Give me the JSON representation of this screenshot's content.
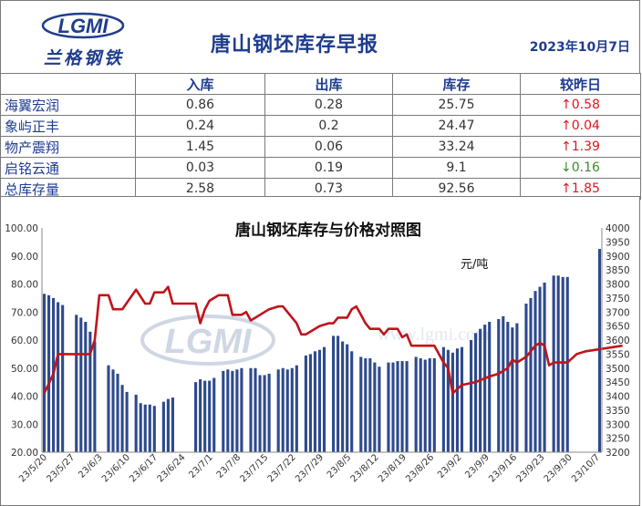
{
  "header": {
    "logo_text": "兰格钢铁",
    "logo_mark": "LGMI",
    "title": "唐山钢坯库存早报",
    "date": "2023年10月7日"
  },
  "table": {
    "columns": [
      "",
      "入库",
      "出库",
      "库存",
      "较昨日"
    ],
    "rows": [
      {
        "name": "海翼宏润",
        "in": "0.86",
        "out": "0.28",
        "stock": "25.75",
        "change": "↑0.58",
        "dir": "up"
      },
      {
        "name": "象屿正丰",
        "in": "0.24",
        "out": "0.2",
        "stock": "24.47",
        "change": "↑0.04",
        "dir": "up"
      },
      {
        "name": "物产震翔",
        "in": "1.45",
        "out": "0.06",
        "stock": "33.24",
        "change": "↑1.39",
        "dir": "up"
      },
      {
        "name": "启铭云通",
        "in": "0.03",
        "out": "0.19",
        "stock": "9.1",
        "change": "↓0.16",
        "dir": "down"
      },
      {
        "name": "总库存量",
        "in": "2.58",
        "out": "0.73",
        "stock": "92.56",
        "change": "↑1.85",
        "dir": "up"
      }
    ]
  },
  "colors": {
    "accent": "#1f3d8f",
    "bar": "#2e4a8c",
    "line": "#c0141b",
    "up": "#e0141e",
    "down": "#3a8c2a"
  },
  "chart_data": {
    "type": "bar",
    "title": "唐山钢坯库存与价格对照图",
    "price_unit_label": "元/吨",
    "watermark": "LGMI",
    "watermark_url": "www.lgmi.com",
    "y_left": {
      "min": 20,
      "max": 100,
      "ticks": [
        "20.00",
        "30.00",
        "40.00",
        "50.00",
        "60.00",
        "70.00",
        "80.00",
        "90.00",
        "100.00"
      ]
    },
    "y_right": {
      "min": 3200,
      "max": 4000,
      "ticks": [
        "3200",
        "3250",
        "3300",
        "3350",
        "3400",
        "3450",
        "3500",
        "3550",
        "3600",
        "3650",
        "3700",
        "3750",
        "3800",
        "3850",
        "3900",
        "3950",
        "4000"
      ]
    },
    "x_ticks": [
      "23/5/20",
      "23/5/27",
      "23/6/3",
      "23/6/10",
      "23/6/17",
      "23/6/24",
      "23/7/1",
      "23/7/8",
      "23/7/15",
      "23/7/22",
      "23/7/29",
      "23/8/5",
      "23/8/12",
      "23/8/19",
      "23/8/26",
      "23/9/2",
      "23/9/9",
      "23/9/16",
      "23/9/23",
      "23/9/30",
      "23/10/7"
    ],
    "series": [
      {
        "axis": "left",
        "values": [
          76.5,
          76.0,
          75.0,
          73.5,
          72.5,
          null,
          null,
          69.0,
          68.0,
          66.5,
          63.0,
          59.5,
          null,
          null,
          51.0,
          49.5,
          48.0,
          44.0,
          41.5,
          null,
          40.5,
          37.5,
          37.0,
          37.0,
          36.5,
          null,
          38.0,
          39.0,
          39.5,
          null,
          null,
          null,
          null,
          45.0,
          46.0,
          45.5,
          45.5,
          46.5,
          null,
          49.0,
          49.5,
          49.0,
          49.5,
          50.0,
          null,
          50.0,
          50.0,
          47.5,
          47.5,
          48.0,
          null,
          49.5,
          50.0,
          49.5,
          50.0,
          51.0,
          null,
          54.5,
          55.0,
          56.0,
          56.5,
          57.5,
          null,
          61.5,
          61.5,
          59.5,
          58.5,
          56.0,
          null,
          54.0,
          53.5,
          53.5,
          52.0,
          50.5,
          null,
          52.0,
          52.0,
          52.5,
          52.5,
          52.5,
          null,
          54.0,
          53.5,
          53.0,
          53.5,
          53.5,
          null,
          57.5,
          56.5,
          55.5,
          57.0,
          57.5,
          null,
          60.0,
          62.5,
          64.0,
          65.5,
          66.5,
          null,
          67.5,
          68.5,
          66.5,
          64.5,
          66.0,
          null,
          73.0,
          75.0,
          77.5,
          79.0,
          80.5,
          null,
          83.0,
          83.0,
          82.5,
          82.5,
          null,
          null,
          null,
          null,
          null,
          null,
          92.5
        ]
      },
      {
        "axis": "right",
        "points": [
          [
            0,
            3410
          ],
          [
            2,
            3480
          ],
          [
            3,
            3550
          ],
          [
            5,
            3550
          ],
          [
            8,
            3550
          ],
          [
            10,
            3550
          ],
          [
            11,
            3600
          ],
          [
            12,
            3760
          ],
          [
            14,
            3760
          ],
          [
            15,
            3710
          ],
          [
            17,
            3710
          ],
          [
            20,
            3780
          ],
          [
            22,
            3730
          ],
          [
            23,
            3730
          ],
          [
            24,
            3770
          ],
          [
            26,
            3770
          ],
          [
            27,
            3790
          ],
          [
            28,
            3730
          ],
          [
            33,
            3730
          ],
          [
            34,
            3660
          ],
          [
            35,
            3710
          ],
          [
            36,
            3740
          ],
          [
            38,
            3760
          ],
          [
            40,
            3760
          ],
          [
            41,
            3690
          ],
          [
            43,
            3690
          ],
          [
            44,
            3700
          ],
          [
            45,
            3670
          ],
          [
            47,
            3690
          ],
          [
            49,
            3710
          ],
          [
            51,
            3720
          ],
          [
            52,
            3720
          ],
          [
            53,
            3700
          ],
          [
            55,
            3660
          ],
          [
            56,
            3620
          ],
          [
            57,
            3620
          ],
          [
            58,
            3630
          ],
          [
            60,
            3650
          ],
          [
            62,
            3660
          ],
          [
            63,
            3660
          ],
          [
            64,
            3680
          ],
          [
            66,
            3680
          ],
          [
            67,
            3710
          ],
          [
            68,
            3720
          ],
          [
            69,
            3690
          ],
          [
            70,
            3660
          ],
          [
            71,
            3640
          ],
          [
            73,
            3640
          ],
          [
            74,
            3620
          ],
          [
            75,
            3640
          ],
          [
            77,
            3640
          ],
          [
            78,
            3610
          ],
          [
            79,
            3620
          ],
          [
            80,
            3580
          ],
          [
            85,
            3580
          ],
          [
            87,
            3520
          ],
          [
            88,
            3500
          ],
          [
            89,
            3410
          ],
          [
            91,
            3440
          ],
          [
            94,
            3450
          ],
          [
            97,
            3470
          ],
          [
            99,
            3480
          ],
          [
            101,
            3500
          ],
          [
            102,
            3530
          ],
          [
            103,
            3520
          ],
          [
            105,
            3540
          ],
          [
            107,
            3580
          ],
          [
            108,
            3590
          ],
          [
            109,
            3580
          ],
          [
            110,
            3510
          ],
          [
            111,
            3520
          ],
          [
            114,
            3520
          ],
          [
            116,
            3550
          ],
          [
            118,
            3560
          ],
          [
            126,
            3580
          ]
        ]
      }
    ]
  }
}
